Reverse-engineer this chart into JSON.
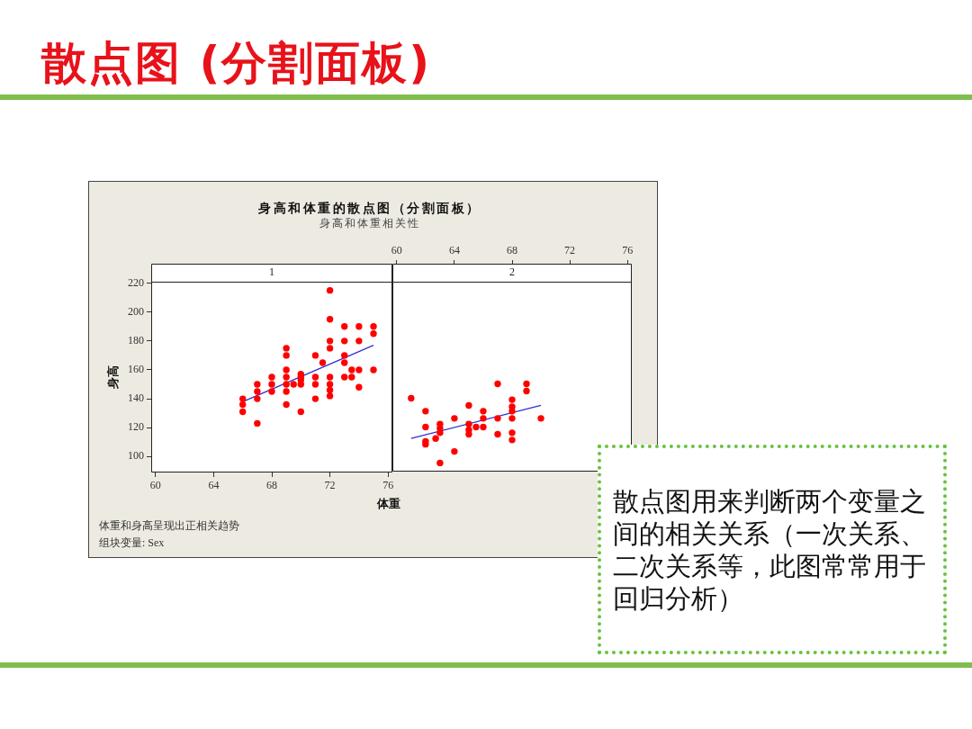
{
  "chart_data": [
    {
      "type": "other",
      "title": "散点图 (分割面板)"
    },
    {
      "type": "other",
      "title": "身高和体重的散点图（分割面板）",
      "subtitle": "身高和体重相关性"
    },
    {
      "type": "scatter",
      "title": "1",
      "xlabel": "体重",
      "ylabel": "身高",
      "xlim": [
        59.7,
        76.3
      ],
      "xticks": [
        60,
        64,
        68,
        72,
        76
      ],
      "ylim": [
        89,
        221
      ],
      "yticks": [
        100,
        120,
        140,
        160,
        180,
        200,
        220
      ],
      "marker": "circle",
      "series": [
        {
          "type": "scatter",
          "color": "#ff0000",
          "x": [
            66,
            66,
            66,
            67,
            67,
            67,
            67,
            68,
            68,
            68,
            69,
            69,
            69,
            69,
            69,
            69,
            69,
            69.5,
            70,
            70,
            70,
            70,
            70,
            71,
            71,
            71,
            71,
            71.5,
            72,
            72,
            72,
            72,
            72,
            72,
            72,
            72,
            73,
            73,
            73,
            73,
            73,
            73.5,
            73.5,
            74,
            74,
            74,
            74,
            75,
            75,
            75
          ],
          "values": [
            140,
            136,
            131,
            150,
            145,
            140,
            123,
            155,
            150,
            145,
            175,
            170,
            160,
            155,
            150,
            145,
            136,
            150,
            157,
            155,
            153,
            150,
            131,
            170,
            155,
            150,
            140,
            165,
            215,
            195,
            180,
            175,
            155,
            150,
            146,
            142,
            190,
            180,
            170,
            165,
            155,
            160,
            155,
            190,
            180,
            160,
            148,
            190,
            185,
            160
          ]
        },
        {
          "type": "line",
          "color": "#3030d0",
          "marker": "none",
          "x": [
            66,
            75
          ],
          "values": [
            138,
            177
          ]
        }
      ],
      "annotations": [
        "体重和身高呈现出正相关趋势",
        "组块变量: Sex"
      ]
    },
    {
      "type": "scatter",
      "title": "2",
      "tick_labels": "x",
      "xlim": [
        59.7,
        76.3
      ],
      "xticks": [
        60,
        64,
        68,
        72,
        76
      ],
      "ylim": [
        89,
        221
      ],
      "yticks": [
        100,
        120,
        140,
        160,
        180,
        200,
        220
      ],
      "marker": "circle",
      "series": [
        {
          "type": "scatter",
          "color": "#ff0000",
          "x": [
            61,
            62,
            62,
            62,
            62,
            62.7,
            63,
            63,
            63,
            63,
            64,
            64,
            65,
            65,
            65,
            65,
            65.5,
            66,
            66,
            66,
            67,
            67,
            67,
            68,
            68,
            68,
            68,
            68,
            68,
            69,
            69,
            70
          ],
          "values": [
            140,
            131,
            120,
            110,
            108,
            112,
            122,
            119,
            116,
            95,
            126,
            103,
            135,
            122,
            118,
            115,
            120,
            131,
            126,
            120,
            150,
            126,
            115,
            139,
            134,
            131,
            126,
            116,
            111,
            150,
            145,
            126
          ]
        },
        {
          "type": "line",
          "color": "#3030d0",
          "marker": "none",
          "x": [
            61,
            70
          ],
          "values": [
            112,
            135
          ]
        }
      ]
    },
    {
      "type": "other",
      "annotations": [
        "散点图用来判断两个变量之间的相关关系（一次关系、二次关系等，此图常常用于回归分析）"
      ]
    }
  ]
}
